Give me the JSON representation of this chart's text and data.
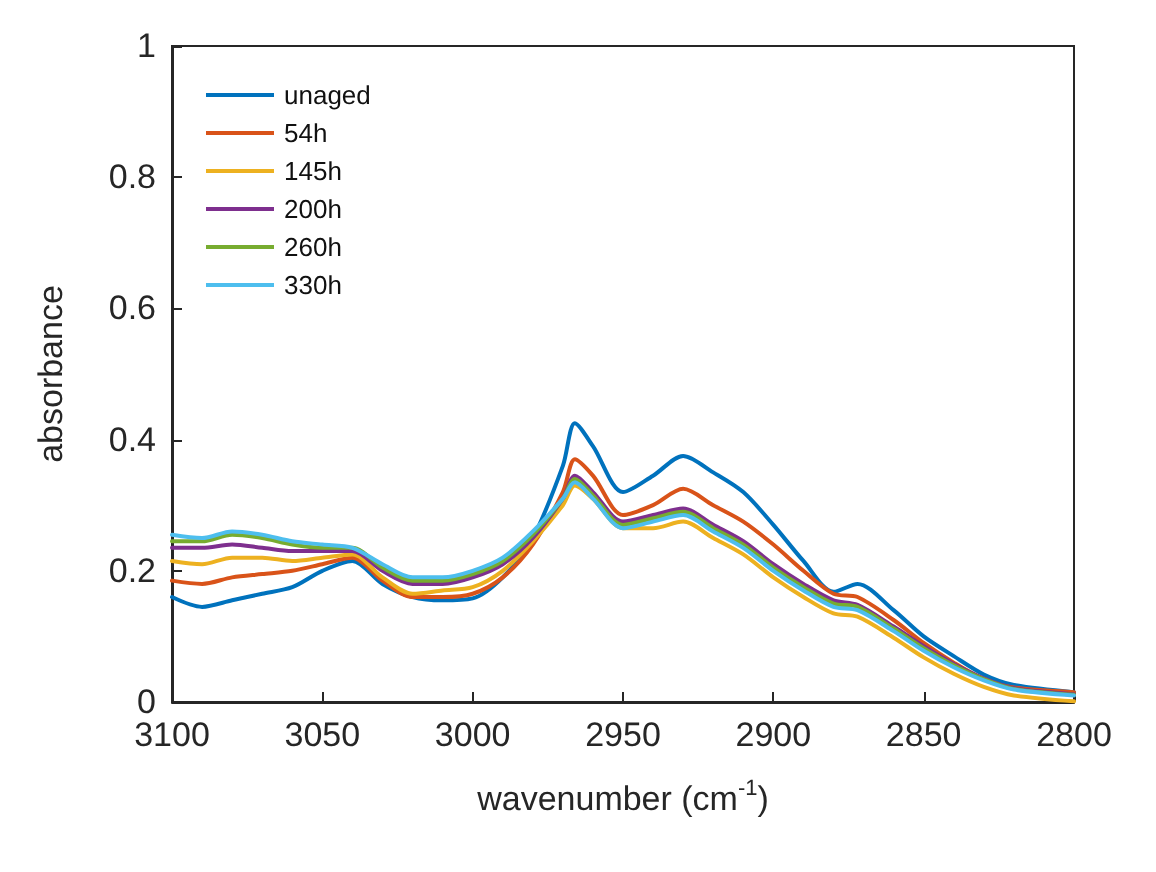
{
  "chart_data": {
    "type": "line",
    "xlabel": "wavenumber (cm$^{-1}$)",
    "ylabel": "absorbance",
    "x": [
      3100,
      3090,
      3080,
      3070,
      3060,
      3050,
      3040,
      3030,
      3020,
      3010,
      3000,
      2990,
      2980,
      2970,
      2966,
      2960,
      2950,
      2940,
      2930,
      2920,
      2910,
      2900,
      2890,
      2880,
      2872,
      2860,
      2850,
      2840,
      2830,
      2820,
      2800
    ],
    "series": [
      {
        "name": "unaged",
        "color": "#0072bd",
        "values": [
          0.16,
          0.145,
          0.155,
          0.165,
          0.175,
          0.2,
          0.215,
          0.18,
          0.16,
          0.155,
          0.158,
          0.19,
          0.25,
          0.36,
          0.425,
          0.39,
          0.32,
          0.345,
          0.375,
          0.35,
          0.32,
          0.27,
          0.215,
          0.168,
          0.18,
          0.14,
          0.1,
          0.07,
          0.042,
          0.026,
          0.015
        ]
      },
      {
        "name": "54h",
        "color": "#d95319",
        "values": [
          0.185,
          0.18,
          0.19,
          0.195,
          0.2,
          0.21,
          0.22,
          0.185,
          0.16,
          0.16,
          0.165,
          0.19,
          0.24,
          0.32,
          0.37,
          0.345,
          0.285,
          0.3,
          0.325,
          0.3,
          0.275,
          0.24,
          0.2,
          0.165,
          0.16,
          0.125,
          0.09,
          0.06,
          0.035,
          0.022,
          0.015
        ]
      },
      {
        "name": "145h",
        "color": "#edb120",
        "values": [
          0.215,
          0.21,
          0.22,
          0.22,
          0.215,
          0.22,
          0.225,
          0.19,
          0.165,
          0.17,
          0.175,
          0.2,
          0.245,
          0.3,
          0.33,
          0.31,
          0.265,
          0.265,
          0.275,
          0.25,
          0.225,
          0.19,
          0.16,
          0.135,
          0.13,
          0.098,
          0.068,
          0.043,
          0.023,
          0.01,
          0.001
        ]
      },
      {
        "name": "200h",
        "color": "#7e2f8e",
        "values": [
          0.235,
          0.235,
          0.24,
          0.235,
          0.23,
          0.23,
          0.23,
          0.2,
          0.18,
          0.18,
          0.19,
          0.21,
          0.25,
          0.31,
          0.345,
          0.32,
          0.275,
          0.285,
          0.295,
          0.27,
          0.245,
          0.21,
          0.18,
          0.155,
          0.148,
          0.115,
          0.085,
          0.058,
          0.036,
          0.021,
          0.012
        ]
      },
      {
        "name": "260h",
        "color": "#77ac30",
        "values": [
          0.245,
          0.245,
          0.255,
          0.25,
          0.24,
          0.235,
          0.235,
          0.205,
          0.185,
          0.185,
          0.195,
          0.215,
          0.255,
          0.31,
          0.34,
          0.315,
          0.27,
          0.28,
          0.29,
          0.265,
          0.24,
          0.205,
          0.175,
          0.15,
          0.145,
          0.112,
          0.082,
          0.056,
          0.035,
          0.02,
          0.011
        ]
      },
      {
        "name": "330h",
        "color": "#4dbeee",
        "values": [
          0.255,
          0.25,
          0.26,
          0.255,
          0.245,
          0.24,
          0.235,
          0.21,
          0.19,
          0.19,
          0.2,
          0.22,
          0.26,
          0.31,
          0.335,
          0.31,
          0.265,
          0.275,
          0.285,
          0.26,
          0.235,
          0.2,
          0.17,
          0.145,
          0.14,
          0.108,
          0.078,
          0.053,
          0.033,
          0.019,
          0.01
        ]
      }
    ],
    "xlim": [
      3100,
      2800
    ],
    "xticks": [
      3100,
      3050,
      3000,
      2950,
      2900,
      2850,
      2800
    ],
    "ylim": [
      0,
      1
    ],
    "yticks": [
      0,
      0.2,
      0.4,
      0.6,
      0.8,
      1
    ],
    "grid": false,
    "legend": "top left",
    "marker": "none",
    "line_style": "solid"
  }
}
